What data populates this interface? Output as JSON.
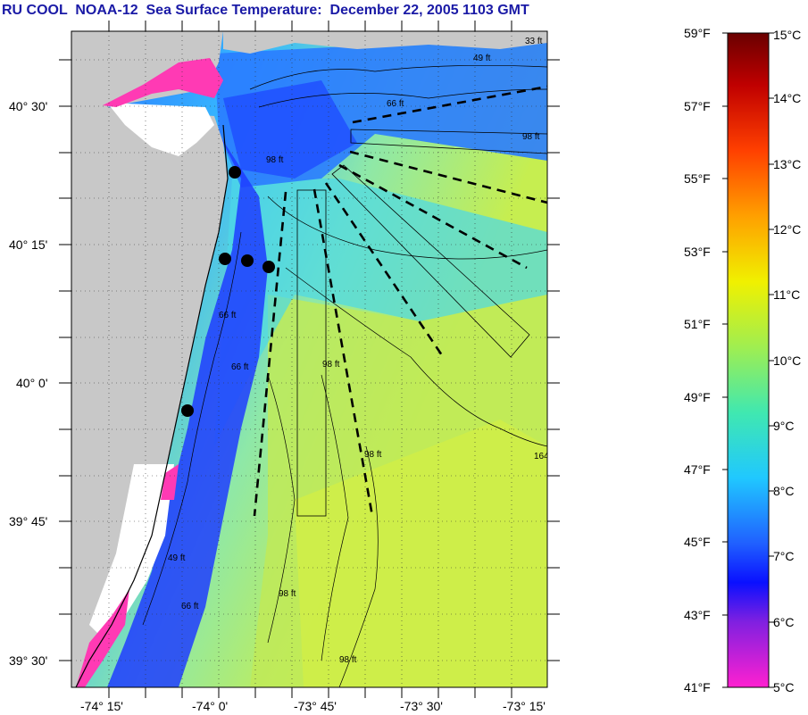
{
  "header": {
    "title": "RU COOL  NOAA-12  Sea Surface Temperature:  December 22, 2005 1103 GMT"
  },
  "map": {
    "lat_labels": [
      "40° 30'",
      "40° 15'",
      "40° 0'",
      "39° 45'",
      "39° 30'"
    ],
    "lon_labels": [
      "-74° 15'",
      "-74° 0'",
      "-73° 45'",
      "-73° 30'",
      "-73° 15'"
    ],
    "contour_labels": [
      "66 ft",
      "98 ft",
      "33 ft",
      "49 ft",
      "66 ft",
      "98 ft",
      "98 ft",
      "164",
      "66 ft",
      "98 ft",
      "49 ft",
      "98 ft",
      "66 ft",
      "98 ft"
    ],
    "colors": {
      "land": "#c8c8c8",
      "cloud": "#ffffff",
      "coast_cold": "#ff3ab4",
      "sea_nearshore": "#1e3cff",
      "sea_mid": "#30aaff",
      "sea_shelf": "#7ce8d0",
      "sea_offshore": "#c8ee50"
    }
  },
  "colorbar": {
    "fahrenheit_labels": [
      "59°F",
      "57°F",
      "55°F",
      "53°F",
      "51°F",
      "49°F",
      "47°F",
      "45°F",
      "43°F",
      "41°F"
    ],
    "celsius_labels": [
      "15°C",
      "14°C",
      "13°C",
      "12°C",
      "11°C",
      "10°C",
      "9°C",
      "8°C",
      "7°C",
      "6°C",
      "5°C"
    ],
    "stops": [
      "#7a0000",
      "#d00000",
      "#ff6000",
      "#ffb000",
      "#f0f000",
      "#b0ee40",
      "#50e8a0",
      "#20d8f0",
      "#2080ff",
      "#1020ff",
      "#9020e0",
      "#ff20d0"
    ]
  }
}
